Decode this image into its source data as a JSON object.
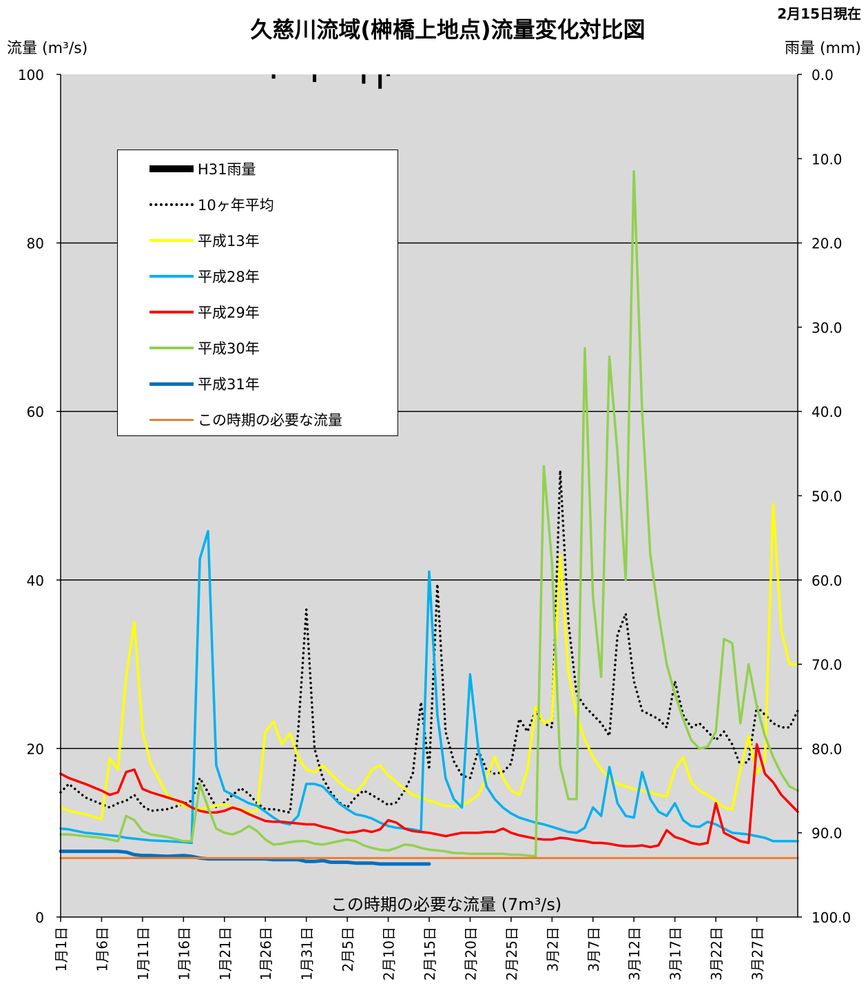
{
  "title": "久慈川流域(榊橋上地点)流量変化対比図",
  "date_note": "2月15日現在",
  "y_left_label": "流量 (m³/s)",
  "y_right_label": "雨量 (mm)",
  "required_flow_note": "この時期の必要な流量 (7m³/s)",
  "chart_data": {
    "type": "line",
    "ylim_left": [
      0,
      100
    ],
    "ylim_right": [
      100,
      0
    ],
    "y_left_ticks": [
      "0",
      "20",
      "40",
      "60",
      "80",
      "100"
    ],
    "y_right_ticks": [
      "100.0",
      "90.0",
      "80.0",
      "70.0",
      "60.0",
      "50.0",
      "40.0",
      "30.0",
      "20.0",
      "10.0",
      "0.0"
    ],
    "x_start_day": 1,
    "x_end_day": 91,
    "x_tick_labels": [
      "1月1日",
      "1月6日",
      "1月11日",
      "1月16日",
      "1月21日",
      "1月26日",
      "1月31日",
      "2月5日",
      "2月10日",
      "2月15日",
      "2月20日",
      "2月25日",
      "3月2日",
      "3月7日",
      "3月12日",
      "3月17日",
      "3月22日",
      "3月27日"
    ],
    "x_tick_days": [
      1,
      6,
      11,
      16,
      21,
      26,
      31,
      36,
      41,
      46,
      51,
      56,
      61,
      66,
      71,
      76,
      81,
      86
    ],
    "rain_bars": [
      {
        "day": 27,
        "mm": 0.5
      },
      {
        "day": 32,
        "mm": 0.9
      },
      {
        "day": 38,
        "mm": 1.1
      },
      {
        "day": 40,
        "mm": 1.7
      },
      {
        "day": 41,
        "mm": 0.2
      }
    ],
    "series": [
      {
        "name": "10ヶ年平均",
        "color": "#000000",
        "style": "dotted",
        "x": [
          1,
          2,
          4,
          6,
          7,
          8,
          9,
          10,
          11,
          12,
          14,
          16,
          17,
          18,
          19,
          20,
          21,
          22,
          23,
          24,
          25,
          26,
          27,
          28,
          29,
          30,
          31,
          32,
          33,
          34,
          35,
          36,
          37,
          38,
          39,
          40,
          41,
          42,
          43,
          44,
          45,
          46,
          47,
          48,
          49,
          50,
          51,
          52,
          53,
          54,
          55,
          56,
          57,
          58,
          59,
          60,
          61,
          62,
          63,
          64,
          65,
          66,
          67,
          68,
          69,
          70,
          71,
          72,
          73,
          74,
          75,
          76,
          77,
          78,
          79,
          80,
          81,
          82,
          83,
          84,
          85,
          86,
          87,
          88,
          89,
          90,
          91
        ],
        "y": [
          14.8,
          15.8,
          14.2,
          13.4,
          13.0,
          13.5,
          13.8,
          14.5,
          13.2,
          12.6,
          12.8,
          13.4,
          13.8,
          16.5,
          14.8,
          13.0,
          13.6,
          14.5,
          15.3,
          14.6,
          13.5,
          12.8,
          12.8,
          12.6,
          12.4,
          22,
          36.5,
          20,
          16.5,
          14.8,
          13.6,
          13.0,
          14.2,
          15.0,
          14.5,
          13.9,
          13.3,
          13.6,
          15.0,
          17.0,
          25.5,
          17.5,
          39.5,
          22,
          18.5,
          16.8,
          16.5,
          19.8,
          17.5,
          17.0,
          17.2,
          18.2,
          23.5,
          22.0,
          24.5,
          23.0,
          22.5,
          53.0,
          35,
          26.5,
          25.0,
          24.0,
          23.0,
          21.5,
          33.5,
          36.0,
          28.0,
          24.5,
          24.0,
          23.5,
          22.5,
          28.0,
          24.0,
          22.5,
          23.0,
          22.0,
          21.0,
          22.0,
          20.5,
          18.0,
          18.5,
          25.0,
          24.0,
          23.0,
          22.5,
          22.5,
          24.5
        ]
      },
      {
        "name": "平成13年",
        "color": "#FFFF00",
        "style": "solid",
        "x": [
          1,
          2,
          4,
          6,
          7,
          8,
          9,
          10,
          11,
          12,
          14,
          16,
          17,
          18,
          19,
          20,
          21,
          22,
          23,
          24,
          25,
          26,
          27,
          28,
          29,
          30,
          31,
          32,
          33,
          34,
          35,
          36,
          37,
          38,
          39,
          40,
          41,
          42,
          43,
          44,
          45,
          46,
          47,
          48,
          49,
          50,
          51,
          52,
          53,
          54,
          55,
          56,
          57,
          58,
          59,
          60,
          61,
          62,
          63,
          64,
          65,
          66,
          67,
          68,
          69,
          70,
          71,
          72,
          73,
          74,
          75,
          76,
          77,
          78,
          79,
          80,
          81,
          82,
          83,
          84,
          85,
          86,
          87,
          88,
          89,
          90,
          91
        ],
        "y": [
          13.0,
          12.6,
          12.2,
          11.6,
          18.8,
          17.5,
          28.5,
          35.0,
          22.0,
          18.2,
          14.5,
          13.2,
          13.0,
          12.8,
          13.0,
          13.2,
          13.4,
          13.0,
          12.8,
          12.5,
          12.6,
          22.0,
          23.2,
          20.5,
          21.8,
          19.0,
          17.5,
          17.2,
          18.0,
          17.0,
          16.0,
          15.2,
          14.8,
          15.8,
          17.5,
          18.0,
          16.8,
          16.0,
          15.2,
          14.5,
          14.2,
          13.8,
          13.5,
          13.2,
          13.1,
          13.3,
          13.8,
          14.5,
          16.5,
          19.0,
          16.5,
          15.0,
          14.5,
          17.5,
          25.0,
          23.0,
          23.5,
          43.0,
          29.0,
          24.0,
          21.0,
          19.0,
          17.5,
          16.5,
          15.8,
          15.5,
          15.2,
          15.0,
          14.8,
          14.5,
          14.3,
          17.5,
          19.0,
          16.0,
          15.0,
          14.5,
          13.8,
          13.0,
          12.8,
          17.5,
          21.5,
          17.0,
          18.5,
          49.0,
          34.0,
          30.0,
          30.0
        ]
      },
      {
        "name": "平成28年",
        "color": "#00B0F0",
        "style": "solid",
        "x": [
          1,
          2,
          4,
          6,
          7,
          8,
          9,
          10,
          11,
          12,
          14,
          16,
          17,
          18,
          19,
          20,
          21,
          22,
          23,
          24,
          25,
          26,
          27,
          28,
          29,
          30,
          31,
          32,
          33,
          34,
          35,
          36,
          37,
          38,
          39,
          40,
          41,
          42,
          43,
          44,
          45,
          46,
          47,
          48,
          49,
          50,
          51,
          52,
          53,
          54,
          55,
          56,
          57,
          58,
          59,
          60,
          61,
          62,
          63,
          64,
          65,
          66,
          67,
          68,
          69,
          70,
          71,
          72,
          73,
          74,
          75,
          76,
          77,
          78,
          79,
          80,
          81,
          82,
          83,
          84,
          85,
          86,
          87,
          88,
          89,
          90,
          91
        ],
        "y": [
          10.5,
          10.4,
          10.0,
          9.8,
          9.7,
          9.6,
          9.4,
          9.3,
          9.2,
          9.1,
          9.0,
          8.9,
          8.8,
          42.5,
          45.8,
          18.0,
          15.0,
          14.5,
          14.0,
          13.5,
          13.2,
          12.5,
          11.8,
          11.2,
          11.0,
          12.0,
          15.8,
          15.8,
          15.5,
          14.5,
          13.5,
          12.8,
          12.2,
          12.0,
          11.7,
          11.2,
          10.8,
          10.6,
          10.5,
          10.4,
          10.2,
          41.0,
          24.0,
          16.5,
          14.0,
          13.0,
          28.8,
          20.0,
          15.5,
          14.0,
          13.0,
          12.3,
          11.8,
          11.5,
          11.2,
          11.0,
          10.7,
          10.4,
          10.1,
          10.0,
          10.6,
          13.0,
          12.0,
          17.8,
          13.5,
          12.0,
          11.8,
          17.2,
          14.0,
          12.5,
          12.0,
          13.5,
          11.5,
          10.8,
          10.7,
          11.3,
          11.0,
          10.5,
          10.0,
          9.9,
          9.8,
          9.6,
          9.4,
          9.0,
          9.0,
          9.0,
          9.0
        ]
      },
      {
        "name": "平成29年",
        "color": "#FF0000",
        "style": "solid",
        "x": [
          1,
          2,
          4,
          6,
          7,
          8,
          9,
          10,
          11,
          12,
          14,
          16,
          17,
          18,
          19,
          20,
          21,
          22,
          23,
          24,
          25,
          26,
          27,
          28,
          29,
          30,
          31,
          32,
          33,
          34,
          35,
          36,
          37,
          38,
          39,
          40,
          41,
          42,
          43,
          44,
          45,
          46,
          47,
          48,
          49,
          50,
          51,
          52,
          53,
          54,
          55,
          56,
          57,
          58,
          59,
          60,
          61,
          62,
          63,
          64,
          65,
          66,
          67,
          68,
          69,
          70,
          71,
          72,
          73,
          74,
          75,
          76,
          77,
          78,
          79,
          80,
          81,
          82,
          83,
          84,
          85,
          86,
          87,
          88,
          89,
          90,
          91
        ],
        "y": [
          17.0,
          16.5,
          15.8,
          15.0,
          14.5,
          14.8,
          17.2,
          17.5,
          15.2,
          14.8,
          14.2,
          13.6,
          13.0,
          12.6,
          12.4,
          12.4,
          12.6,
          13.0,
          12.7,
          12.2,
          11.8,
          11.4,
          11.3,
          11.3,
          11.2,
          11.1,
          11.0,
          11.0,
          10.7,
          10.5,
          10.2,
          10.0,
          10.1,
          10.3,
          10.1,
          10.4,
          11.5,
          11.2,
          10.5,
          10.2,
          10.1,
          10.0,
          9.8,
          9.6,
          9.8,
          10.0,
          10.0,
          10.0,
          10.1,
          10.1,
          10.5,
          10.0,
          9.7,
          9.5,
          9.3,
          9.2,
          9.2,
          9.4,
          9.3,
          9.1,
          9.0,
          8.8,
          8.8,
          8.7,
          8.5,
          8.4,
          8.4,
          8.5,
          8.3,
          8.5,
          10.3,
          9.5,
          9.2,
          8.8,
          8.6,
          8.8,
          13.5,
          10.0,
          9.5,
          9.0,
          8.8,
          20.5,
          17.0,
          16.0,
          14.5,
          13.5,
          12.5
        ]
      },
      {
        "name": "平成30年",
        "color": "#92D050",
        "style": "solid",
        "x": [
          1,
          2,
          4,
          6,
          7,
          8,
          9,
          10,
          11,
          12,
          14,
          16,
          17,
          18,
          19,
          20,
          21,
          22,
          23,
          24,
          25,
          26,
          27,
          28,
          29,
          30,
          31,
          32,
          33,
          34,
          35,
          36,
          37,
          38,
          39,
          40,
          41,
          42,
          43,
          44,
          45,
          46,
          47,
          48,
          49,
          50,
          51,
          52,
          53,
          54,
          55,
          56,
          57,
          58,
          59,
          60,
          61,
          62,
          63,
          64,
          65,
          66,
          67,
          68,
          69,
          70,
          71,
          72,
          73,
          74,
          75,
          76,
          77,
          78,
          79,
          80,
          81,
          82,
          83,
          84,
          85,
          86,
          87,
          88,
          89,
          90,
          91
        ],
        "y": [
          9.8,
          9.8,
          9.6,
          9.4,
          9.2,
          9.0,
          12.0,
          11.5,
          10.2,
          9.8,
          9.5,
          9.0,
          9.0,
          15.8,
          13.0,
          10.5,
          10.0,
          9.8,
          10.2,
          10.8,
          10.2,
          9.2,
          8.6,
          8.7,
          8.9,
          9.0,
          9.0,
          8.7,
          8.6,
          8.8,
          9.0,
          9.2,
          9.0,
          8.5,
          8.2,
          8.0,
          7.9,
          8.2,
          8.6,
          8.5,
          8.2,
          8.0,
          7.9,
          7.8,
          7.6,
          7.6,
          7.5,
          7.5,
          7.5,
          7.5,
          7.5,
          7.4,
          7.4,
          7.3,
          7.2,
          53.5,
          42.0,
          18.0,
          14.0,
          14.0,
          67.5,
          38.0,
          28.5,
          66.5,
          55.0,
          40.0,
          88.5,
          60.0,
          43.0,
          36.0,
          30.0,
          26.5,
          23.5,
          21.0,
          20.0,
          20.2,
          22.0,
          33.0,
          32.5,
          23.0,
          30.0,
          25.0,
          21.5,
          19.0,
          17.0,
          15.5,
          15.0
        ]
      },
      {
        "name": "平成31年",
        "color": "#0070C0",
        "style": "solid",
        "x": [
          1,
          2,
          4,
          6,
          7,
          8,
          9,
          10,
          11,
          12,
          14,
          16,
          17,
          18,
          19,
          20,
          21,
          22,
          23,
          24,
          25,
          26,
          27,
          28,
          29,
          30,
          31,
          32,
          33,
          34,
          35,
          36,
          37,
          38,
          39,
          40,
          41,
          42,
          43,
          44,
          45,
          46
        ],
        "y": [
          7.8,
          7.8,
          7.8,
          7.8,
          7.8,
          7.8,
          7.7,
          7.4,
          7.3,
          7.3,
          7.2,
          7.3,
          7.2,
          7.0,
          6.9,
          6.9,
          6.9,
          6.9,
          6.9,
          6.9,
          6.9,
          6.9,
          6.8,
          6.8,
          6.8,
          6.8,
          6.6,
          6.6,
          6.7,
          6.5,
          6.5,
          6.5,
          6.4,
          6.4,
          6.4,
          6.3,
          6.3,
          6.3,
          6.3,
          6.3,
          6.3,
          6.3
        ]
      },
      {
        "name": "この時期の必要な流量",
        "color": "#ED7D31",
        "style": "solid",
        "x": [
          1,
          91
        ],
        "y": [
          7,
          7
        ]
      }
    ]
  },
  "legend": {
    "rain_label": "H31雨量",
    "items": [
      "10ヶ年平均",
      "平成13年",
      "平成28年",
      "平成29年",
      "平成30年",
      "平成31年",
      "この時期の必要な流量"
    ],
    "colors": [
      "#000000",
      "#FFFF00",
      "#00B0F0",
      "#FF0000",
      "#92D050",
      "#0070C0",
      "#ED7D31"
    ]
  }
}
